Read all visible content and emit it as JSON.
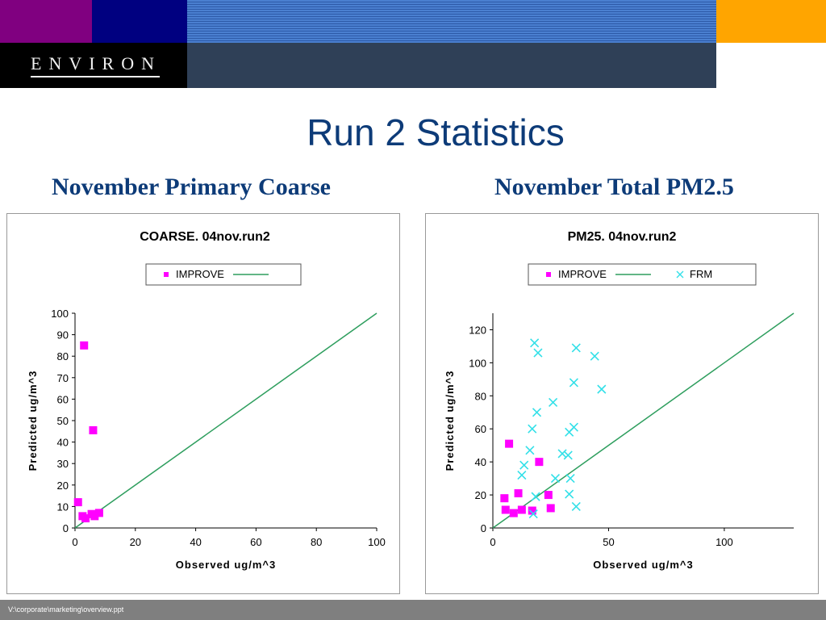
{
  "header": {
    "logo_text": "ENVIRON"
  },
  "slide": {
    "title": "Run 2 Statistics",
    "subtitle_left": "November Primary Coarse",
    "subtitle_right": "November Total PM2.5",
    "footer": "V:\\corporate\\marketing\\overview.ppt"
  },
  "colors": {
    "improve": "#ff00ff",
    "frm": "#33e0e8",
    "one_to_one": "#2e9e5e",
    "title_blue": "#0d3b78"
  },
  "chart_data": [
    {
      "type": "scatter",
      "title": "COARSE.  04nov.run2",
      "xlabel": "Observed ug/m^3",
      "ylabel": "Predicted ug/m^3",
      "xlim": [
        0,
        100
      ],
      "ylim": [
        0,
        100
      ],
      "xticks": [
        0,
        20,
        40,
        60,
        80,
        100
      ],
      "yticks": [
        0,
        10,
        20,
        30,
        40,
        50,
        60,
        70,
        80,
        90,
        100
      ],
      "legend": {
        "position": "top",
        "entries": [
          "IMPROVE"
        ]
      },
      "one_to_one_line": true,
      "series": [
        {
          "name": "IMPROVE",
          "marker": "square",
          "points": [
            [
              3,
              85
            ],
            [
              6,
              45.5
            ],
            [
              1,
              12
            ],
            [
              2.5,
              5.5
            ],
            [
              3.5,
              4.5
            ],
            [
              5.5,
              6.5
            ],
            [
              6.5,
              5.5
            ],
            [
              8,
              7
            ]
          ]
        }
      ]
    },
    {
      "type": "scatter",
      "title": "PM25.  04nov.run2",
      "xlabel": "Observed ug/m^3",
      "ylabel": "Predicted ug/m^3",
      "xlim": [
        0,
        130
      ],
      "ylim": [
        0,
        130
      ],
      "xticks": [
        0,
        50,
        100
      ],
      "yticks": [
        0,
        20,
        40,
        60,
        80,
        100,
        120
      ],
      "legend": {
        "position": "top",
        "entries": [
          "IMPROVE",
          "FRM"
        ]
      },
      "one_to_one_line": true,
      "series": [
        {
          "name": "IMPROVE",
          "marker": "square",
          "points": [
            [
              7,
              51
            ],
            [
              20,
              40
            ],
            [
              5,
              18
            ],
            [
              11,
              21
            ],
            [
              24,
              20
            ],
            [
              5.5,
              11
            ],
            [
              9,
              9
            ],
            [
              12.5,
              11
            ],
            [
              17,
              10.5
            ],
            [
              25,
              12
            ]
          ]
        },
        {
          "name": "FRM",
          "marker": "x",
          "points": [
            [
              18,
              112
            ],
            [
              36,
              109
            ],
            [
              19.5,
              106
            ],
            [
              44,
              104
            ],
            [
              35,
              88
            ],
            [
              47,
              84
            ],
            [
              26,
              76
            ],
            [
              19,
              70
            ],
            [
              17,
              60
            ],
            [
              35,
              61
            ],
            [
              33,
              58
            ],
            [
              16,
              47
            ],
            [
              30,
              45
            ],
            [
              32.5,
              44
            ],
            [
              13.5,
              38
            ],
            [
              12.5,
              32
            ],
            [
              27,
              30
            ],
            [
              33.5,
              30
            ],
            [
              18.5,
              19
            ],
            [
              33,
              20.5
            ],
            [
              36,
              13
            ],
            [
              17.5,
              8.5
            ]
          ]
        }
      ]
    }
  ]
}
